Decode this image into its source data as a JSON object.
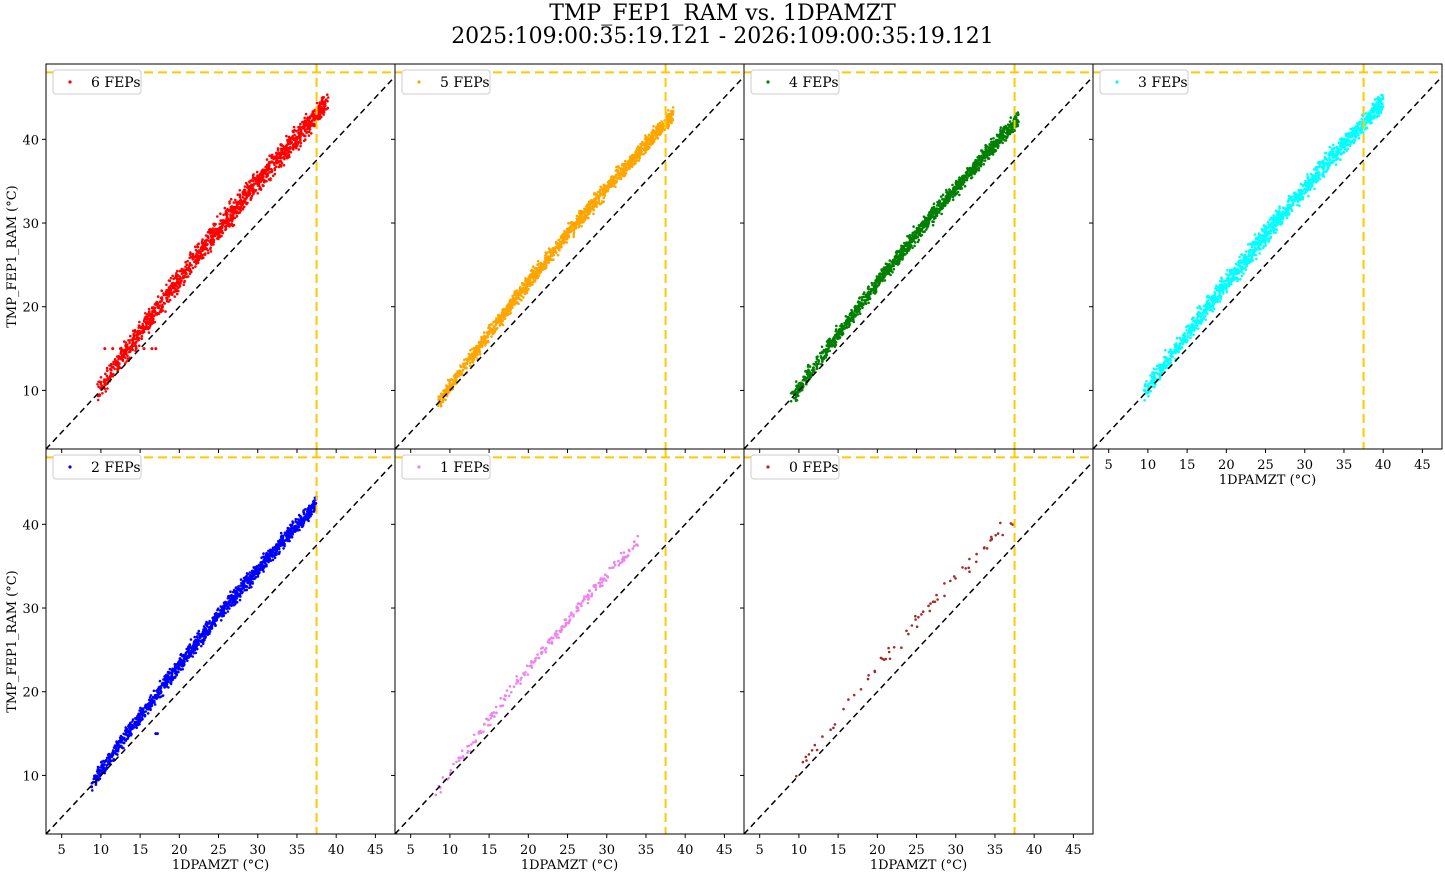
{
  "figure": {
    "title_line1": "TMP_FEP1_RAM vs. 1DPAMZT",
    "title_line2": "2025:109:00:35:19.121 - 2026:109:00:35:19.121"
  },
  "chart_data": {
    "type": "scatter",
    "xlabel": "1DPAMZT (°C)",
    "ylabel": "TMP_FEP1_RAM (°C)",
    "xlim": [
      3,
      47.5
    ],
    "ylim": [
      3,
      49
    ],
    "xticks": [
      5,
      10,
      15,
      20,
      25,
      30,
      35,
      40,
      45
    ],
    "yticks": [
      10,
      20,
      30,
      40
    ],
    "reference_line": {
      "style": "black dashed",
      "equation": "y = x"
    },
    "limit_lines": {
      "x": 37.5,
      "y": 48.0,
      "color": "#FFC800"
    },
    "panels": [
      {
        "name": "6 FEPs",
        "color": "#FF0000",
        "x_range": [
          9.5,
          39.0
        ],
        "y_start": 9.8,
        "y_end": 44.5,
        "spread": 1.6,
        "density": "high",
        "extra_points": [
          [
            10.5,
            15
          ],
          [
            11.5,
            15
          ],
          [
            12.5,
            15
          ],
          [
            13.5,
            15
          ],
          [
            14.5,
            15
          ],
          [
            15.5,
            15
          ],
          [
            16.5,
            15
          ],
          [
            17.0,
            15
          ]
        ]
      },
      {
        "name": "5 FEPs",
        "color": "#FFA500",
        "x_range": [
          8.5,
          38.5
        ],
        "y_start": 8.5,
        "y_end": 43.0,
        "spread": 1.1,
        "density": "high",
        "extra_points": []
      },
      {
        "name": "4 FEPs",
        "color": "#008000",
        "x_range": [
          9.0,
          38.0
        ],
        "y_start": 9.0,
        "y_end": 42.5,
        "spread": 1.1,
        "density": "high",
        "extra_points": []
      },
      {
        "name": "3 FEPs",
        "color": "#00FFFF",
        "x_range": [
          9.5,
          40.0
        ],
        "y_start": 9.8,
        "y_end": 44.5,
        "spread": 1.4,
        "density": "high",
        "extra_points": []
      },
      {
        "name": "2 FEPs",
        "color": "#0000FF",
        "x_range": [
          8.8,
          37.5
        ],
        "y_start": 9.0,
        "y_end": 42.5,
        "spread": 1.1,
        "density": "high",
        "extra_points": [
          [
            17.0,
            15
          ],
          [
            17.2,
            15
          ]
        ]
      },
      {
        "name": "1 FEPs",
        "color": "#EE82EE",
        "x_range": [
          8.0,
          34.0
        ],
        "y_start": 7.5,
        "y_end": 38.0,
        "spread": 0.8,
        "density": "medium",
        "extra_points": []
      },
      {
        "name": "0 FEPs",
        "color": "#A52A2A",
        "x_range": [
          9.5,
          37.5
        ],
        "y_start": 10.0,
        "y_end": 41.0,
        "spread": 1.3,
        "density": "low",
        "extra_points": []
      }
    ]
  }
}
